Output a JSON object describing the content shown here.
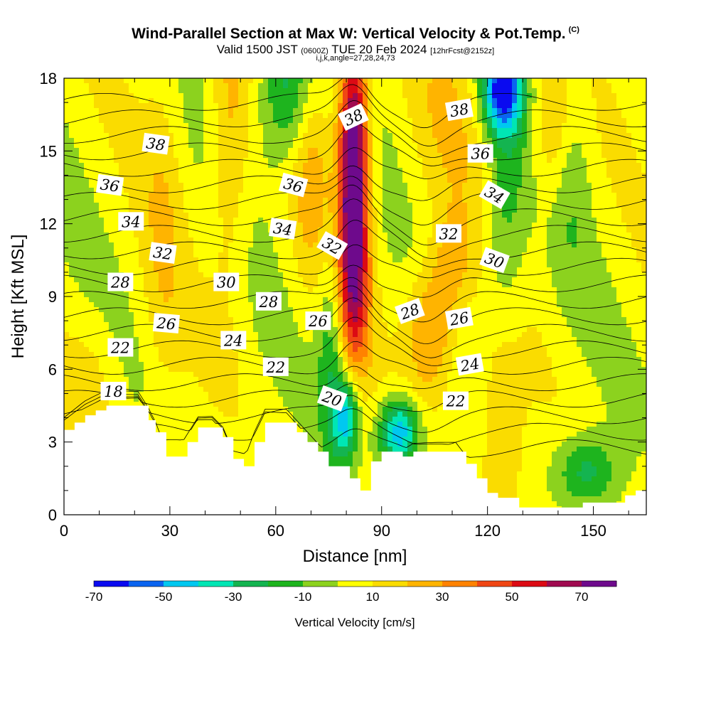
{
  "header": {
    "title": "Wind-Parallel Section at Max W: Vertical Velocity & Pot.Temp.",
    "copyright": "(C)",
    "valid_prefix": "Valid 1500 JST",
    "valid_utc": "(0600Z)",
    "valid_date": "TUE 20 Feb 2024",
    "forecast": "[12hrFcst@2152z]",
    "indices": "i,j,k,angle=27,28,24,73"
  },
  "chart_data": {
    "type": "heatmap",
    "xlabel": "Distance [nm]",
    "ylabel": "Height [Kft MSL]",
    "xlim": [
      0,
      165
    ],
    "ylim": [
      0,
      18
    ],
    "x_ticks": [
      0,
      30,
      60,
      90,
      120,
      150
    ],
    "y_ticks": [
      0,
      3,
      6,
      9,
      12,
      15,
      18
    ],
    "colorbar": {
      "label": "Vertical Velocity [cm/s]",
      "ticks": [
        -70,
        -50,
        -30,
        -10,
        10,
        30,
        50,
        70
      ],
      "bounds": [
        -70,
        80
      ],
      "colors": [
        "#0a0af0",
        "#0a64f0",
        "#00c8f0",
        "#00e6b4",
        "#14b450",
        "#1eb41e",
        "#8cd21e",
        "#ffff00",
        "#fadc00",
        "#ffb400",
        "#ff8200",
        "#f04614",
        "#dc0a14",
        "#a00a50",
        "#6e0a8c"
      ]
    },
    "terrain_kft": [
      [
        0,
        3.5
      ],
      [
        3,
        3.8
      ],
      [
        6,
        4.1
      ],
      [
        9,
        4.3
      ],
      [
        12,
        4.5
      ],
      [
        15,
        4.5
      ],
      [
        18,
        4.5
      ],
      [
        21,
        4.5
      ],
      [
        24,
        3.9
      ],
      [
        26,
        3.4
      ],
      [
        29,
        2.4
      ],
      [
        32,
        2.4
      ],
      [
        35,
        3.0
      ],
      [
        38,
        3.6
      ],
      [
        42,
        3.6
      ],
      [
        45,
        3.2
      ],
      [
        48,
        2.3
      ],
      [
        51,
        2.0
      ],
      [
        54,
        3.0
      ],
      [
        57,
        3.8
      ],
      [
        60,
        3.8
      ],
      [
        63,
        3.8
      ],
      [
        66,
        3.4
      ],
      [
        69,
        3.0
      ],
      [
        72,
        2.6
      ],
      [
        75,
        2.0
      ],
      [
        78,
        2.0
      ],
      [
        81,
        1.5
      ],
      [
        84,
        1.0
      ],
      [
        87,
        2.2
      ],
      [
        90,
        2.6
      ],
      [
        93,
        2.6
      ],
      [
        96,
        2.4
      ],
      [
        99,
        2.6
      ],
      [
        102,
        2.6
      ],
      [
        105,
        2.6
      ],
      [
        108,
        2.6
      ],
      [
        111,
        2.6
      ],
      [
        114,
        2.1
      ],
      [
        117,
        1.5
      ],
      [
        120,
        0.9
      ],
      [
        123,
        0.7
      ],
      [
        126,
        0.7
      ],
      [
        129,
        0.3
      ],
      [
        132,
        0.3
      ],
      [
        135,
        0.3
      ],
      [
        138,
        0.3
      ],
      [
        141,
        0.3
      ],
      [
        144,
        0.3
      ],
      [
        147,
        0.5
      ],
      [
        150,
        0.5
      ],
      [
        153,
        0.5
      ],
      [
        156,
        0.5
      ],
      [
        159,
        0.8
      ],
      [
        162,
        1.0
      ],
      [
        165,
        1.0
      ]
    ],
    "velocity_features": [
      {
        "x": 82,
        "z": 14.5,
        "sx": 3.0,
        "sz": 4.0,
        "w": 85
      },
      {
        "x": 82,
        "z": 9.0,
        "sx": 3.5,
        "sz": 2.5,
        "w": 30
      },
      {
        "x": 104,
        "z": 7.5,
        "sx": 5,
        "sz": 2.0,
        "w": 32
      },
      {
        "x": 110,
        "z": 10.5,
        "sx": 4,
        "sz": 1.5,
        "w": 18
      },
      {
        "x": 95,
        "z": 3.4,
        "sx": 4,
        "sz": 1.0,
        "w": -55
      },
      {
        "x": 80,
        "z": 4.0,
        "sx": 2.5,
        "sz": 1.2,
        "w": -45
      },
      {
        "x": 76,
        "z": 6.5,
        "sx": 3,
        "sz": 3.5,
        "w": -25
      },
      {
        "x": 64,
        "z": 17.5,
        "sx": 6,
        "sz": 2.2,
        "w": -35
      },
      {
        "x": 124,
        "z": 17.5,
        "sx": 4,
        "sz": 1.2,
        "w": -60
      },
      {
        "x": 125,
        "z": 13.0,
        "sx": 4,
        "sz": 5.0,
        "w": -20
      },
      {
        "x": 148,
        "z": 1.8,
        "sx": 6,
        "sz": 1.0,
        "w": -28
      },
      {
        "x": 143,
        "z": 15.0,
        "sx": 4,
        "sz": 3.5,
        "w": -15
      },
      {
        "x": 110,
        "z": 16.5,
        "sx": 8,
        "sz": 3.0,
        "w": 12
      },
      {
        "x": 139,
        "z": 16.0,
        "sx": 4,
        "sz": 2.5,
        "w": 25
      },
      {
        "x": 124,
        "z": 3.5,
        "sx": 4,
        "sz": 3.0,
        "w": 22
      },
      {
        "x": 47,
        "z": 15.5,
        "sx": 4,
        "sz": 4.5,
        "w": 20
      },
      {
        "x": 70,
        "z": 15.5,
        "sx": 4,
        "sz": 4.0,
        "w": 22
      },
      {
        "x": 28,
        "z": 11.5,
        "sx": 4,
        "sz": 6.0,
        "w": 12
      },
      {
        "x": 8,
        "z": 5.5,
        "sx": 6,
        "sz": 2.0,
        "w": 10
      }
    ],
    "theta_contours": {
      "min": 17,
      "max": 38,
      "step": 1
    },
    "contour_labels": [
      {
        "text": "18",
        "x": 14,
        "z": 5.1,
        "angle": 0
      },
      {
        "text": "22",
        "x": 16,
        "z": 6.9,
        "angle": 0
      },
      {
        "text": "28",
        "x": 16,
        "z": 9.6,
        "angle": 0
      },
      {
        "text": "34",
        "x": 19,
        "z": 12.1,
        "angle": 0
      },
      {
        "text": "36",
        "x": 13,
        "z": 13.6,
        "angle": 8
      },
      {
        "text": "38",
        "x": 26,
        "z": 15.3,
        "angle": 8
      },
      {
        "text": "32",
        "x": 28,
        "z": 10.8,
        "angle": 8
      },
      {
        "text": "26",
        "x": 29,
        "z": 7.9,
        "angle": 5
      },
      {
        "text": "30",
        "x": 46,
        "z": 9.6,
        "angle": 0
      },
      {
        "text": "24",
        "x": 48,
        "z": 7.2,
        "angle": 0
      },
      {
        "text": "28",
        "x": 58,
        "z": 8.8,
        "angle": 0
      },
      {
        "text": "22",
        "x": 60,
        "z": 6.1,
        "angle": 0
      },
      {
        "text": "34",
        "x": 62,
        "z": 11.8,
        "angle": 8
      },
      {
        "text": "36",
        "x": 65,
        "z": 13.6,
        "angle": 15
      },
      {
        "text": "26",
        "x": 72,
        "z": 8.0,
        "angle": 0
      },
      {
        "text": "32",
        "x": 76,
        "z": 11.1,
        "angle": 30
      },
      {
        "text": "20",
        "x": 76,
        "z": 4.8,
        "angle": 20
      },
      {
        "text": "38",
        "x": 82,
        "z": 16.4,
        "angle": -25
      },
      {
        "text": "28",
        "x": 98,
        "z": 8.4,
        "angle": -20
      },
      {
        "text": "26",
        "x": 112,
        "z": 8.1,
        "angle": -10
      },
      {
        "text": "24",
        "x": 115,
        "z": 6.2,
        "angle": -10
      },
      {
        "text": "22",
        "x": 111,
        "z": 4.7,
        "angle": 0
      },
      {
        "text": "32",
        "x": 109,
        "z": 11.6,
        "angle": 0
      },
      {
        "text": "30",
        "x": 122,
        "z": 10.5,
        "angle": 20
      },
      {
        "text": "34",
        "x": 122,
        "z": 13.2,
        "angle": 30
      },
      {
        "text": "36",
        "x": 118,
        "z": 14.9,
        "angle": 0
      },
      {
        "text": "38",
        "x": 112,
        "z": 16.7,
        "angle": -10
      }
    ]
  }
}
